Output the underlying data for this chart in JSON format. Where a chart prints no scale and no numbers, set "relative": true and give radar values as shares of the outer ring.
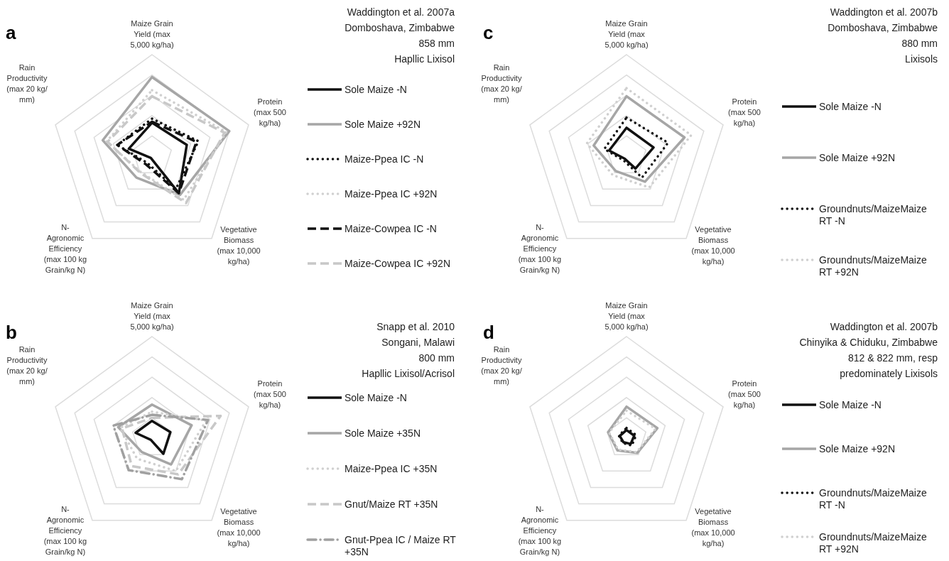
{
  "chart_data": [
    {
      "type": "radar",
      "relative": true,
      "grid": true,
      "legend": "right",
      "annotations": [
        "a"
      ],
      "title": "Waddington et al. 2007a",
      "subtitle": "Domboshava, Zimbabwe\n858 mm\nHapllic Lixisol",
      "categories": [
        "Maize Grain\nYield (max\n5,000 kg/ha)",
        "Protein\n(max 500\nkg/ha)",
        "Vegetative\nBiomass\n(max 10,000\nkg/ha)",
        "N-\nAgronomic\nEfficiency\n(max 100 kg\nGrain/kg N)",
        "Rain\nProductivity\n(max 20 kg/\nmm)"
      ],
      "series": [
        {
          "name": "Sole Maize -N",
          "color": "#111111",
          "line_style": "solid",
          "values": [
            0.33,
            0.36,
            0.45,
            0.02,
            0.24
          ]
        },
        {
          "name": "Sole Maize +92N",
          "color": "#a6a6a6",
          "line_style": "solid",
          "values": [
            0.78,
            0.8,
            0.47,
            0.26,
            0.51
          ]
        },
        {
          "name": "Maize-Ppea IC -N",
          "color": "#111111",
          "line_style": "dotted",
          "values": [
            0.37,
            0.48,
            0.4,
            0.08,
            0.36
          ]
        },
        {
          "name": "Maize-Ppea IC +92N",
          "color": "#d0d0d0",
          "line_style": "dotted",
          "values": [
            0.65,
            0.77,
            0.53,
            0.19,
            0.47
          ]
        },
        {
          "name": "Maize-Cowpea IC -N",
          "color": "#111111",
          "line_style": "dashed",
          "values": [
            0.34,
            0.46,
            0.45,
            0.1,
            0.36
          ]
        },
        {
          "name": "Maize-Cowpea IC +92N",
          "color": "#c8c8c8",
          "line_style": "dashed",
          "values": [
            0.59,
            0.75,
            0.57,
            0.2,
            0.46
          ]
        }
      ]
    },
    {
      "type": "radar",
      "relative": true,
      "grid": true,
      "legend": "right",
      "annotations": [
        "b"
      ],
      "title": "Snapp et al. 2010",
      "subtitle": "Songani, Malawi\n800 mm\nHapllic Lixisol/Acrisol",
      "categories": [
        "Maize Grain\nYield (max\n5,000 kg/ha)",
        "Protein\n(max 500\nkg/ha)",
        "Vegetative\nBiomass\n(max 10,000\nkg/ha)",
        "N-\nAgronomic\nEfficiency\n(max 100 kg\nGrain/kg N)",
        "Rain\nProductivity\n(max 20 kg/\nmm)"
      ],
      "series": [
        {
          "name": "Sole Maize -N",
          "color": "#111111",
          "line_style": "solid",
          "values": [
            0.17,
            0.19,
            0.19,
            0.02,
            0.17
          ]
        },
        {
          "name": "Sole Maize +35N",
          "color": "#a6a6a6",
          "line_style": "solid",
          "values": [
            0.33,
            0.41,
            0.32,
            0.17,
            0.35
          ]
        },
        {
          "name": "Maize-Ppea IC +35N",
          "color": "#d0d0d0",
          "line_style": "dotted",
          "values": [
            0.26,
            0.56,
            0.4,
            0.25,
            0.33
          ]
        },
        {
          "name": "Gnut/Maize RT +35N",
          "color": "#c8c8c8",
          "line_style": "dashed",
          "values": [
            0.2,
            0.71,
            0.44,
            0.34,
            0.31
          ]
        },
        {
          "name": "Gnut-Ppea IC / Maize RT +35N",
          "color": "#a0a0a0",
          "line_style": "dashdot",
          "values": [
            0.23,
            0.58,
            0.5,
            0.39,
            0.4
          ]
        }
      ]
    },
    {
      "type": "radar",
      "relative": true,
      "grid": true,
      "legend": "right",
      "annotations": [
        "c"
      ],
      "title": "Waddington et al. 2007b",
      "subtitle": "Domboshava, Zimbabwe\n880 mm\nLixisols",
      "categories": [
        "Maize Grain\nYield (max\n5,000 kg/ha)",
        "Protein\n(max 500\nkg/ha)",
        "Vegetative\nBiomass\n(max 10,000\nkg/ha)",
        "N-\nAgronomic\nEfficiency\n(max 100 kg\nGrain/kg N)",
        "Rain\nProductivity\n(max 20 kg/\nmm)"
      ],
      "series": [
        {
          "name": "Sole Maize -N",
          "color": "#111111",
          "line_style": "solid",
          "values": [
            0.28,
            0.28,
            0.15,
            0.03,
            0.18
          ]
        },
        {
          "name": "Sole Maize +92N",
          "color": "#a6a6a6",
          "line_style": "solid",
          "values": [
            0.59,
            0.6,
            0.31,
            0.18,
            0.34
          ]
        },
        {
          "name": "Groundnuts/MaizeMaize RT -N",
          "color": "#111111",
          "line_style": "dotted",
          "values": [
            0.38,
            0.43,
            0.26,
            0.05,
            0.23
          ]
        },
        {
          "name": "Groundnuts/MaizeMaize RT +92N",
          "color": "#d0d0d0",
          "line_style": "dotted",
          "values": [
            0.67,
            0.67,
            0.38,
            0.23,
            0.41
          ]
        }
      ]
    },
    {
      "type": "radar",
      "relative": true,
      "grid": true,
      "legend": "right",
      "annotations": [
        "d"
      ],
      "title": "Waddington et al. 2007b",
      "subtitle": "Chinyika & Chiduku, Zimbabwe\n812 & 822 mm, resp\npredominately Lixisols",
      "categories": [
        "Maize Grain\nYield (max\n5,000 kg/ha)",
        "Protein\n(max 500\nkg/ha)",
        "Vegetative\nBiomass\n(max 10,000\nkg/ha)",
        "N-\nAgronomic\nEfficiency\n(max 100 kg\nGrain/kg N)",
        "Rain\nProductivity\n(max 20 kg/\nmm)"
      ],
      "series": [
        {
          "name": "Sole Maize -N",
          "color": "#111111",
          "line_style": "solid",
          "values": [
            0.08,
            0.08,
            0.07,
            0.05,
            0.07
          ]
        },
        {
          "name": "Sole Maize +92N",
          "color": "#a6a6a6",
          "line_style": "solid",
          "values": [
            0.31,
            0.32,
            0.18,
            0.15,
            0.19
          ]
        },
        {
          "name": "Groundnuts/MaizeMaize RT -N",
          "color": "#111111",
          "line_style": "dotted",
          "values": [
            0.1,
            0.1,
            0.09,
            0.06,
            0.08
          ]
        },
        {
          "name": "Groundnuts/MaizeMaize RT +92N",
          "color": "#d0d0d0",
          "line_style": "dotted",
          "values": [
            0.27,
            0.3,
            0.17,
            0.14,
            0.18
          ]
        }
      ]
    }
  ]
}
